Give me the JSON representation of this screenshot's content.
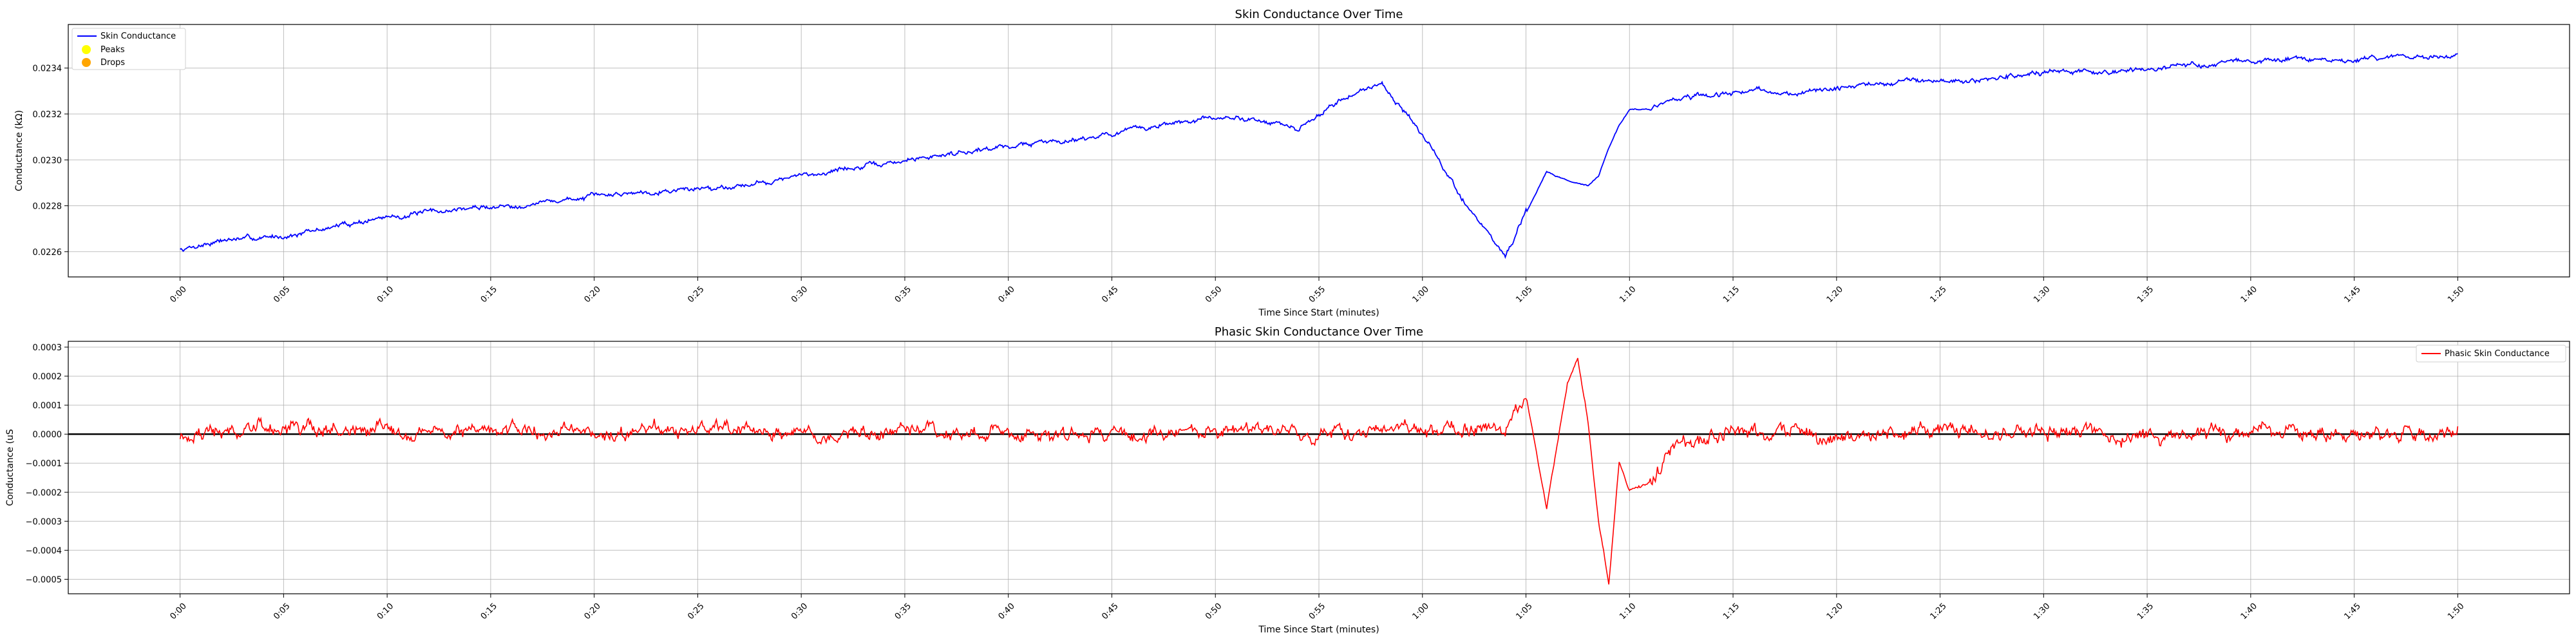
{
  "chart_data": [
    {
      "type": "line",
      "title": "Skin Conductance Over Time",
      "xlabel": "Time Since Start (minutes)",
      "ylabel": "Conductance (kΩ)",
      "x_ticks": [
        "0:00",
        "0:05",
        "0:10",
        "0:15",
        "0:20",
        "0:25",
        "0:30",
        "0:35",
        "0:40",
        "0:45",
        "0:50",
        "0:55",
        "1:00",
        "1:05",
        "1:10",
        "1:15",
        "1:20",
        "1:25",
        "1:30",
        "1:35",
        "1:40",
        "1:45",
        "1:50"
      ],
      "y_ticks": [
        "0.0226",
        "0.0228",
        "0.0230",
        "0.0232",
        "0.0234"
      ],
      "xlim_seconds": [
        -5.4,
        115.4
      ],
      "ylim": [
        0.02249,
        0.02359
      ],
      "grid": true,
      "legend": {
        "position": "top-left",
        "entries": [
          {
            "label": "Skin Conductance",
            "marker": "line",
            "color": "#0000ff"
          },
          {
            "label": "Peaks",
            "marker": "dot",
            "color": "#ffff00"
          },
          {
            "label": "Drops",
            "marker": "dot",
            "color": "#ffa500"
          }
        ]
      },
      "series": [
        {
          "name": "Skin Conductance",
          "color": "#0000ff",
          "x_seconds": [
            0,
            2,
            4,
            6,
            8,
            10,
            12,
            14,
            16,
            18,
            20,
            22,
            24,
            26,
            28,
            30,
            32,
            34,
            36,
            38,
            40,
            42,
            44,
            46,
            48,
            50,
            52,
            54,
            56,
            58,
            60,
            62,
            64,
            66,
            67,
            68,
            68.5,
            69,
            69.5,
            70,
            71,
            72,
            74,
            76,
            78,
            80,
            82,
            84,
            86,
            88,
            90,
            92,
            94,
            96,
            98,
            100,
            102,
            104,
            106,
            108,
            110
          ],
          "values": [
            0.02261,
            0.02265,
            0.02266,
            0.02268,
            0.02272,
            0.02275,
            0.02277,
            0.02279,
            0.0228,
            0.02282,
            0.02284,
            0.02286,
            0.02287,
            0.02288,
            0.0229,
            0.02293,
            0.02296,
            0.02298,
            0.02301,
            0.02304,
            0.02306,
            0.02308,
            0.0231,
            0.02313,
            0.02316,
            0.02318,
            0.02318,
            0.02313,
            0.02326,
            0.02334,
            0.02311,
            0.02282,
            0.02258,
            0.02295,
            0.02291,
            0.02289,
            0.02293,
            0.02305,
            0.02315,
            0.02322,
            0.02322,
            0.02326,
            0.02328,
            0.0233,
            0.02329,
            0.02331,
            0.02333,
            0.02335,
            0.02334,
            0.02336,
            0.02338,
            0.02338,
            0.02339,
            0.0234,
            0.02342,
            0.02343,
            0.02344,
            0.02343,
            0.02344,
            0.02345,
            0.02346
          ]
        }
      ]
    },
    {
      "type": "line",
      "title": "Phasic Skin Conductance Over Time",
      "xlabel": "Time Since Start (minutes)",
      "ylabel": "Conductance (uS",
      "x_ticks": [
        "0:00",
        "0:05",
        "0:10",
        "0:15",
        "0:20",
        "0:25",
        "0:30",
        "0:35",
        "0:40",
        "0:45",
        "0:50",
        "0:55",
        "1:00",
        "1:05",
        "1:10",
        "1:15",
        "1:20",
        "1:25",
        "1:30",
        "1:35",
        "1:40",
        "1:45",
        "1:50"
      ],
      "y_ticks": [
        "0.0003",
        "0.0002",
        "0.0001",
        "0.0000",
        "−0.0001",
        "−0.0002",
        "−0.0003",
        "−0.0004",
        "−0.0005"
      ],
      "xlim_seconds": [
        -5.4,
        115.4
      ],
      "ylim": [
        -0.00055,
        0.00032
      ],
      "grid": true,
      "zero_line": true,
      "legend": {
        "position": "top-right",
        "entries": [
          {
            "label": "Phasic Skin Conductance",
            "marker": "line",
            "color": "#ff0000"
          }
        ]
      },
      "series": [
        {
          "name": "Phasic Skin Conductance",
          "color": "#ff0000",
          "x_seconds": [
            0,
            5,
            10,
            15,
            20,
            25,
            30,
            35,
            40,
            45,
            50,
            55,
            60,
            64,
            65,
            66,
            67,
            67.5,
            68,
            68.5,
            69,
            69.5,
            70,
            71,
            72,
            75,
            80,
            85,
            90,
            95,
            100,
            105,
            110
          ],
          "values": [
            0,
            2e-05,
            1e-05,
            2e-05,
            0,
            1e-05,
            0,
            0,
            1e-05,
            0,
            1e-05,
            0,
            1e-05,
            2e-05,
            0.00014,
            -0.00026,
            0.00018,
            0.00026,
            4e-05,
            -0.0003,
            -0.00052,
            -9e-05,
            -0.00019,
            -0.00017,
            -5e-05,
            1e-05,
            0,
            2e-05,
            1e-05,
            0,
            1e-05,
            0,
            1e-05
          ]
        }
      ]
    }
  ]
}
